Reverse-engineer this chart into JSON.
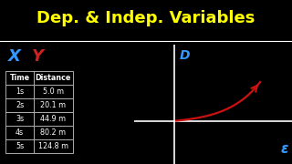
{
  "title": "Dep. & Indep. Variables",
  "title_color": "#FFFF00",
  "bg_color": "#000000",
  "title_fontsize": 13,
  "x_label": "X",
  "y_label": "Y",
  "x_label_color": "#3399FF",
  "y_label_color": "#CC2222",
  "table_headers": [
    "Time",
    "Distance"
  ],
  "table_rows": [
    [
      "1s",
      "5.0 m"
    ],
    [
      "2s",
      "20.1 m"
    ],
    [
      "3s",
      "44.9 m"
    ],
    [
      "4s",
      "80.2 m"
    ],
    [
      "5s",
      "124.8 m"
    ]
  ],
  "axis_color": "#FFFFFF",
  "curve_color": "#CC1111",
  "d_label": "D",
  "d_label_color": "#3399FF",
  "e_label": "ε",
  "e_label_color": "#3399FF",
  "divider_color": "#FFFFFF"
}
